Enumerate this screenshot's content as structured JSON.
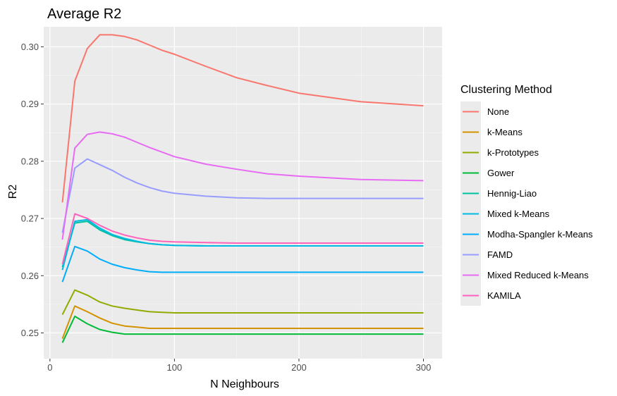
{
  "chart_data": {
    "type": "line",
    "title": "Average R2",
    "xlabel": "N Neighbours",
    "ylabel": "R2",
    "xlim": [
      -5,
      315
    ],
    "ylim": [
      0.2455,
      0.3035
    ],
    "x_ticks": [
      0,
      100,
      200,
      300
    ],
    "y_ticks": [
      0.25,
      0.26,
      0.27,
      0.28,
      0.29,
      0.3
    ],
    "y_tick_labels": [
      "0.25",
      "0.26",
      "0.27",
      "0.28",
      "0.29",
      "0.30"
    ],
    "grid": true,
    "legend": {
      "title": "Clustering Method",
      "position": "right"
    },
    "x": [
      10,
      20,
      30,
      40,
      50,
      60,
      70,
      80,
      90,
      100,
      125,
      150,
      175,
      200,
      250,
      300
    ],
    "series": [
      {
        "name": "None",
        "color": "#F8766D",
        "values": [
          0.2728,
          0.294,
          0.2997,
          0.3021,
          0.3021,
          0.3018,
          0.3012,
          0.3003,
          0.2994,
          0.2987,
          0.2966,
          0.2946,
          0.2932,
          0.2919,
          0.2904,
          0.2897
        ]
      },
      {
        "name": "k-Means",
        "color": "#D39200",
        "values": [
          0.249,
          0.2547,
          0.2537,
          0.2526,
          0.2517,
          0.2512,
          0.251,
          0.2508,
          0.2508,
          0.2508,
          0.2508,
          0.2508,
          0.2508,
          0.2508,
          0.2508,
          0.2508
        ]
      },
      {
        "name": "k-Prototypes",
        "color": "#93AA00",
        "values": [
          0.2532,
          0.2575,
          0.2566,
          0.2554,
          0.2547,
          0.2543,
          0.254,
          0.2537,
          0.2536,
          0.2535,
          0.2535,
          0.2535,
          0.2535,
          0.2535,
          0.2535,
          0.2535
        ]
      },
      {
        "name": "Gower",
        "color": "#00BA38",
        "values": [
          0.2483,
          0.2529,
          0.2516,
          0.2506,
          0.2501,
          0.2498,
          0.2498,
          0.2498,
          0.2498,
          0.2498,
          0.2498,
          0.2498,
          0.2498,
          0.2498,
          0.2498,
          0.2498
        ]
      },
      {
        "name": "Hennig-Liao",
        "color": "#00C19F",
        "values": [
          0.2615,
          0.2692,
          0.2695,
          0.268,
          0.267,
          0.2663,
          0.2659,
          0.2656,
          0.2654,
          0.2653,
          0.2652,
          0.2652,
          0.2652,
          0.2652,
          0.2652,
          0.2652
        ]
      },
      {
        "name": "Mixed k-Means",
        "color": "#00B9E3",
        "values": [
          0.261,
          0.2695,
          0.2698,
          0.2683,
          0.2672,
          0.2665,
          0.266,
          0.2656,
          0.2654,
          0.2653,
          0.2652,
          0.2652,
          0.2652,
          0.2652,
          0.2652,
          0.2652
        ]
      },
      {
        "name": "Modha-Spangler k-Means",
        "color": "#00ADFA",
        "values": [
          0.2589,
          0.2651,
          0.2643,
          0.2629,
          0.262,
          0.2614,
          0.261,
          0.2607,
          0.2606,
          0.2606,
          0.2606,
          0.2606,
          0.2606,
          0.2606,
          0.2606,
          0.2606
        ]
      },
      {
        "name": "FAMD",
        "color": "#979DFF",
        "values": [
          0.2675,
          0.2788,
          0.2804,
          0.2794,
          0.2784,
          0.2772,
          0.2762,
          0.2754,
          0.2748,
          0.2744,
          0.2739,
          0.2736,
          0.2735,
          0.2735,
          0.2735,
          0.2735
        ]
      },
      {
        "name": "Mixed Reduced k-Means",
        "color": "#E76BF3",
        "values": [
          0.2663,
          0.2823,
          0.2847,
          0.2851,
          0.2848,
          0.2842,
          0.2833,
          0.2824,
          0.2816,
          0.2808,
          0.2795,
          0.2786,
          0.2778,
          0.2774,
          0.2768,
          0.2766
        ]
      },
      {
        "name": "KAMILA",
        "color": "#FF62BC",
        "values": [
          0.262,
          0.2708,
          0.27,
          0.2688,
          0.2678,
          0.2671,
          0.2666,
          0.2662,
          0.266,
          0.2659,
          0.2658,
          0.2657,
          0.2657,
          0.2657,
          0.2657,
          0.2657
        ]
      }
    ]
  }
}
